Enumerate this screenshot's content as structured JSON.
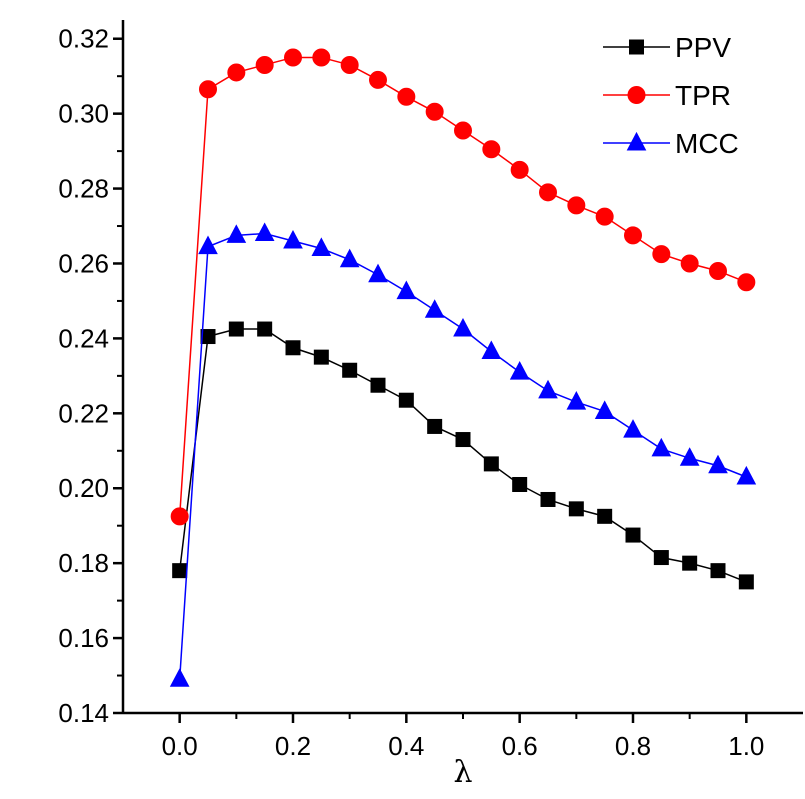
{
  "chart_data": {
    "type": "line",
    "title": "",
    "xlabel": "λ",
    "ylabel": "",
    "xlim": [
      -0.1,
      1.1
    ],
    "ylim": [
      0.14,
      0.325
    ],
    "x_ticks": [
      "0.0",
      "0.2",
      "0.4",
      "0.6",
      "0.8",
      "1.0"
    ],
    "x_tick_values": [
      0.0,
      0.2,
      0.4,
      0.6,
      0.8,
      1.0
    ],
    "y_ticks": [
      "0.14",
      "0.16",
      "0.18",
      "0.20",
      "0.22",
      "0.24",
      "0.26",
      "0.28",
      "0.30",
      "0.32"
    ],
    "y_tick_values": [
      0.14,
      0.16,
      0.18,
      0.2,
      0.22,
      0.24,
      0.26,
      0.28,
      0.3,
      0.32
    ],
    "grid": false,
    "legend_position": "top-right",
    "x": [
      0.0,
      0.05,
      0.1,
      0.15,
      0.2,
      0.25,
      0.3,
      0.35,
      0.4,
      0.45,
      0.5,
      0.55,
      0.6,
      0.65,
      0.7,
      0.75,
      0.8,
      0.85,
      0.9,
      0.95,
      1.0
    ],
    "series": [
      {
        "name": "PPV",
        "color": "#000000",
        "marker": "square",
        "values": [
          0.178,
          0.2405,
          0.2425,
          0.2425,
          0.2375,
          0.235,
          0.2315,
          0.2275,
          0.2235,
          0.2165,
          0.213,
          0.2065,
          0.201,
          0.197,
          0.1945,
          0.1925,
          0.1875,
          0.1815,
          0.18,
          0.178,
          0.175
        ]
      },
      {
        "name": "TPR",
        "color": "#ff0000",
        "marker": "circle",
        "values": [
          0.1925,
          0.3065,
          0.311,
          0.313,
          0.315,
          0.315,
          0.313,
          0.309,
          0.3045,
          0.3005,
          0.2955,
          0.2905,
          0.285,
          0.279,
          0.2755,
          0.2725,
          0.2675,
          0.2625,
          0.26,
          0.258,
          0.255
        ]
      },
      {
        "name": "MCC",
        "color": "#0000ff",
        "marker": "triangle",
        "values": [
          0.149,
          0.2645,
          0.2675,
          0.268,
          0.266,
          0.264,
          0.261,
          0.257,
          0.2525,
          0.2475,
          0.2425,
          0.2365,
          0.231,
          0.226,
          0.223,
          0.2205,
          0.2155,
          0.2105,
          0.208,
          0.206,
          0.203
        ]
      }
    ]
  }
}
